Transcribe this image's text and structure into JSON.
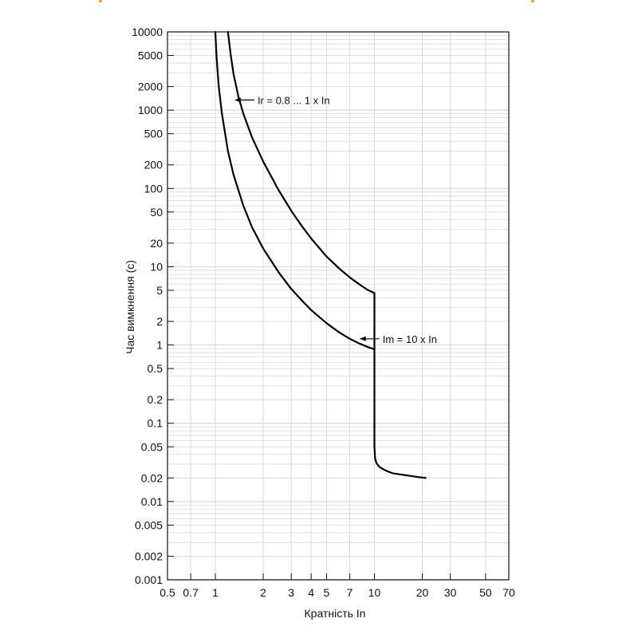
{
  "chart_data": {
    "type": "line",
    "x_scale": "log",
    "y_scale": "log",
    "xlabel": "Кратність In",
    "ylabel": "Час вимкнення (с)",
    "xlim": [
      0.5,
      70
    ],
    "ylim": [
      0.001,
      10000
    ],
    "grid": true,
    "x_ticks": [
      {
        "value": 0.5,
        "label": "0.5"
      },
      {
        "value": 0.7,
        "label": "0.7"
      },
      {
        "value": 1,
        "label": "1"
      },
      {
        "value": 2,
        "label": "2"
      },
      {
        "value": 3,
        "label": "3"
      },
      {
        "value": 4,
        "label": "4"
      },
      {
        "value": 5,
        "label": "5"
      },
      {
        "value": 7,
        "label": "7"
      },
      {
        "value": 10,
        "label": "10"
      },
      {
        "value": 20,
        "label": "20"
      },
      {
        "value": 30,
        "label": "30"
      },
      {
        "value": 50,
        "label": "50"
      },
      {
        "value": 70,
        "label": "70"
      }
    ],
    "y_ticks": [
      {
        "value": 10000,
        "label": "10000"
      },
      {
        "value": 5000,
        "label": "5000"
      },
      {
        "value": 2000,
        "label": "2000"
      },
      {
        "value": 1000,
        "label": "1000"
      },
      {
        "value": 500,
        "label": "500"
      },
      {
        "value": 200,
        "label": "200"
      },
      {
        "value": 100,
        "label": "100"
      },
      {
        "value": 50,
        "label": "50"
      },
      {
        "value": 20,
        "label": "20"
      },
      {
        "value": 10,
        "label": "10"
      },
      {
        "value": 5,
        "label": "5"
      },
      {
        "value": 2,
        "label": "2"
      },
      {
        "value": 1,
        "label": "1"
      },
      {
        "value": 0.5,
        "label": "0.5"
      },
      {
        "value": 0.2,
        "label": "0.2"
      },
      {
        "value": 0.1,
        "label": "0.1"
      },
      {
        "value": 0.05,
        "label": "0.05"
      },
      {
        "value": 0.02,
        "label": "0.02"
      },
      {
        "value": 0.01,
        "label": "0.01"
      },
      {
        "value": 0.005,
        "label": "0.005"
      },
      {
        "value": 0.002,
        "label": "0.002"
      },
      {
        "value": 0.001,
        "label": "0.001"
      }
    ],
    "series": [
      {
        "x": [
          1.0,
          1.02,
          1.05,
          1.1,
          1.2,
          1.3,
          1.5,
          1.7,
          2.0,
          2.5,
          3.0,
          3.5,
          4.0,
          5.0,
          6.0,
          7.0,
          8.0,
          9.0,
          10.0
        ],
        "y": [
          10000,
          4500,
          2000,
          900,
          300,
          150,
          60,
          32,
          17,
          8.5,
          5.2,
          3.7,
          2.8,
          1.9,
          1.45,
          1.2,
          1.05,
          0.95,
          0.88
        ]
      },
      {
        "x": [
          1.2,
          1.25,
          1.3,
          1.4,
          1.5,
          1.7,
          2.0,
          2.5,
          3.0,
          3.5,
          4.0,
          5.0,
          6.0,
          7.0,
          8.0,
          9.0,
          10.0
        ],
        "y": [
          10000,
          5000,
          2900,
          1450,
          900,
          450,
          220,
          95,
          52,
          33,
          23,
          13.5,
          9.5,
          7.3,
          6.0,
          5.1,
          4.6
        ]
      },
      {
        "x": [
          10.0,
          10.0,
          10.0,
          10.1,
          10.3,
          10.7,
          11.3,
          12.0,
          13.0,
          15.0,
          17.0,
          19.0,
          21.0
        ],
        "y": [
          4.6,
          0.88,
          0.05,
          0.036,
          0.031,
          0.028,
          0.026,
          0.0245,
          0.023,
          0.022,
          0.0212,
          0.0205,
          0.02
        ]
      }
    ],
    "annotations": [
      {
        "text": "Ir = 0.8 ... 1 x In",
        "x": 1.8,
        "y": 1350
      },
      {
        "text": "Im = 10 x In",
        "x": 11,
        "y": 1.2
      }
    ]
  },
  "colors": {
    "curve": "#000000",
    "grid": "#d8d8d8",
    "frame": "#111111",
    "corner_accent": "#f0a040"
  }
}
